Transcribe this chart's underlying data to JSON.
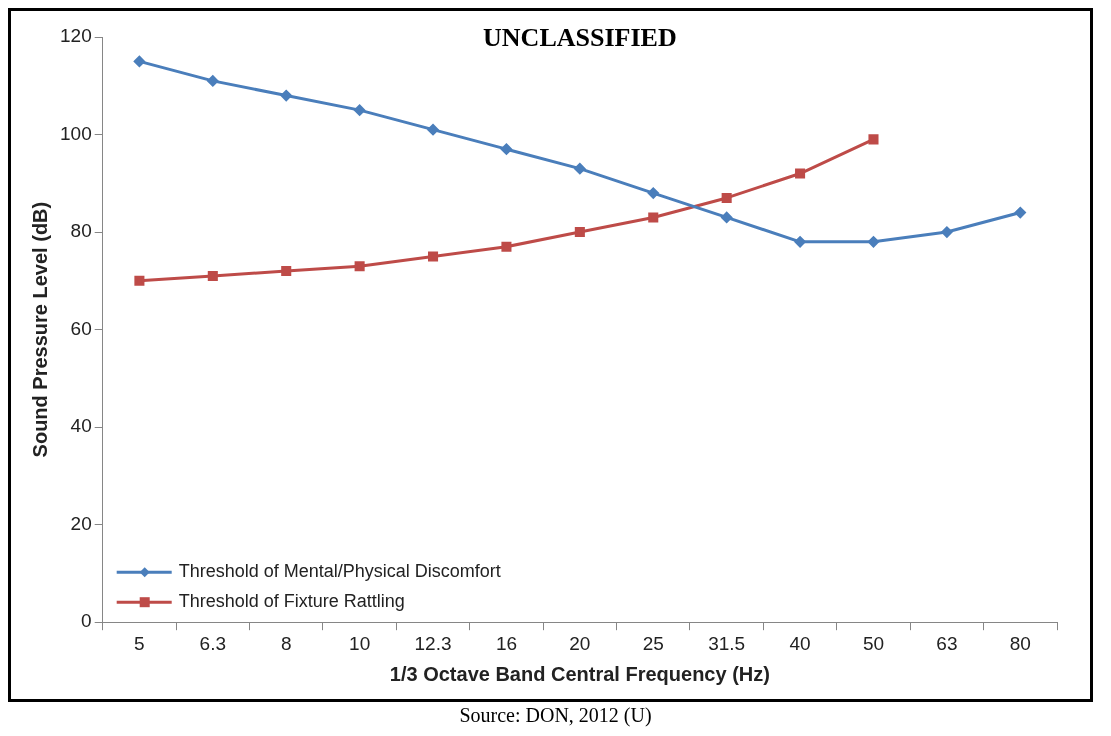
{
  "chart_data": {
    "type": "line",
    "title": "UNCLASSIFIED",
    "xlabel": "1/3 Octave Band Central Frequency (Hz)",
    "ylabel": "Sound Pressure Level (dB)",
    "annotations": [
      "Source: DON, 2012 (U)"
    ],
    "categories": [
      "5",
      "6.3",
      "8",
      "10",
      "12.3",
      "16",
      "20",
      "25",
      "31.5",
      "40",
      "50",
      "63",
      "80"
    ],
    "series": [
      {
        "name": "Threshold of Mental/Physical Discomfort",
        "color": "#4a7ebb",
        "marker": "diamond",
        "values": [
          115,
          111,
          108,
          105,
          101,
          97,
          93,
          88,
          83,
          78,
          78,
          80,
          84
        ]
      },
      {
        "name": "Threshold of Fixture Rattling",
        "color": "#be4b48",
        "marker": "square",
        "values": [
          70,
          71,
          72,
          73,
          75,
          77,
          80,
          83,
          87,
          92,
          99,
          null,
          null
        ]
      }
    ],
    "ylim": [
      0,
      120
    ],
    "yticks": [
      0,
      20,
      40,
      60,
      80,
      100,
      120
    ],
    "grid": false,
    "legend": "bottom left"
  }
}
